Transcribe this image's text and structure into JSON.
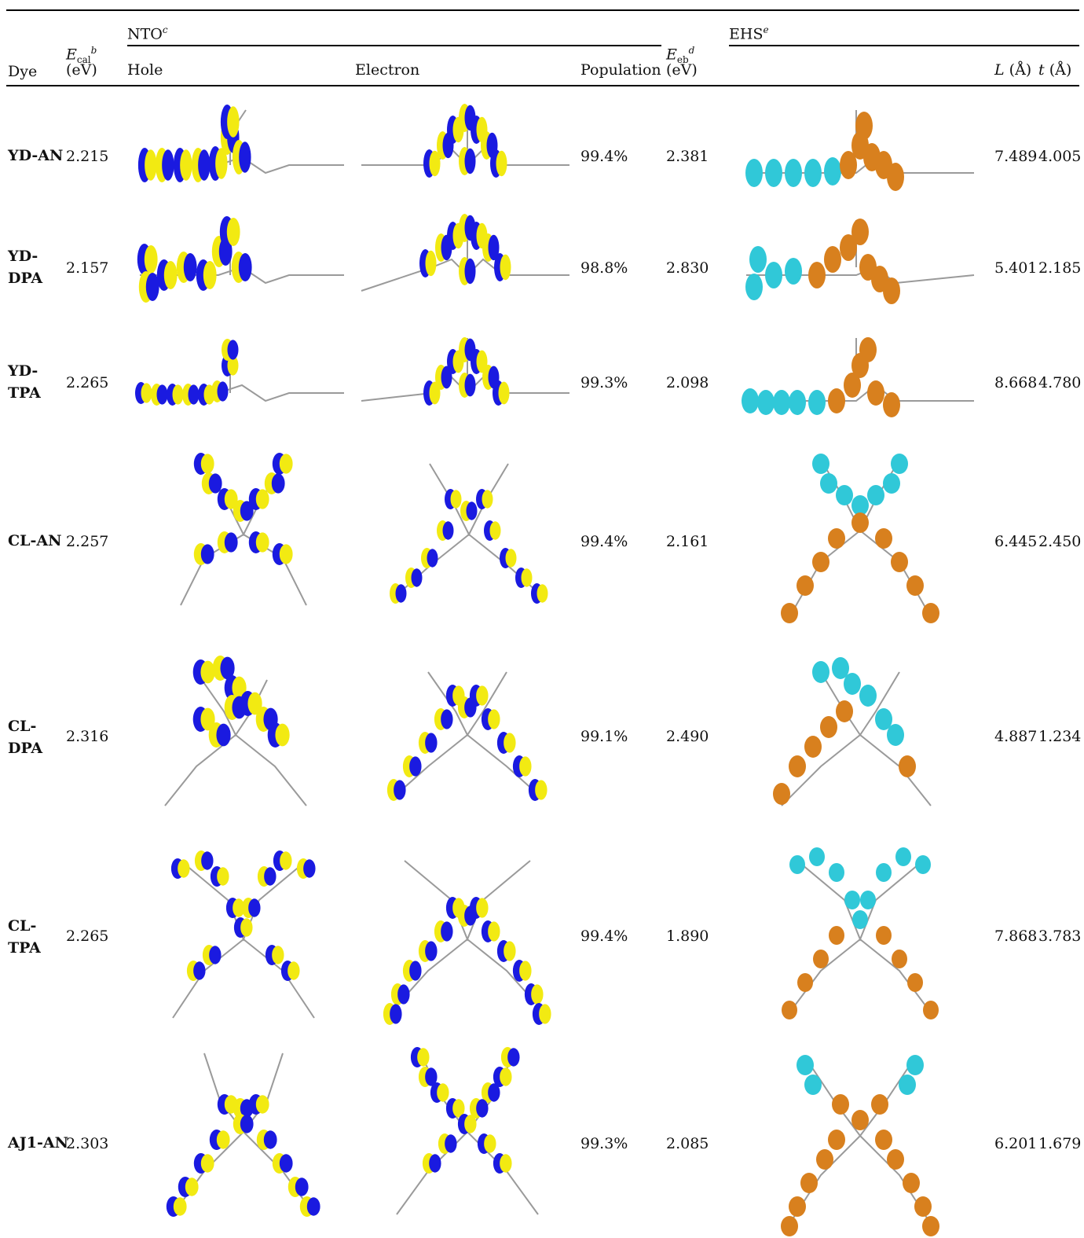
{
  "header": {
    "dye": "Dye",
    "ecal_symbol": "E",
    "ecal_sub": "cal",
    "ecal_sup": "b",
    "ecal_unit": "(eV)",
    "nto": "NTO",
    "nto_sup": "c",
    "hole": "Hole",
    "electron": "Electron",
    "population": "Population",
    "eeb_symbol": "E",
    "eeb_sub": "eb",
    "eeb_sup": "d",
    "eeb_unit": "(eV)",
    "ehs": "EHS",
    "ehs_sup": "e",
    "L_label": "L",
    "L_unit": "(Å)",
    "t_label": "t",
    "t_unit": "(Å)"
  },
  "rows": [
    {
      "dye_line1": "YD-AN",
      "dye_line2": "",
      "ecal": "2.215",
      "population": "99.4%",
      "eeb": "2.381",
      "L": "7.489",
      "t": "4.005"
    },
    {
      "dye_line1": "YD-",
      "dye_line2": "DPA",
      "ecal": "2.157",
      "population": "98.8%",
      "eeb": "2.830",
      "L": "5.401",
      "t": "2.185"
    },
    {
      "dye_line1": "YD-",
      "dye_line2": "TPA",
      "ecal": "2.265",
      "population": "99.3%",
      "eeb": "2.098",
      "L": "8.668",
      "t": "4.780"
    },
    {
      "dye_line1": "CL-AN",
      "dye_line2": "",
      "ecal": "2.257",
      "population": "99.4%",
      "eeb": "2.161",
      "L": "6.445",
      "t": "2.450"
    },
    {
      "dye_line1": "CL-",
      "dye_line2": "DPA",
      "ecal": "2.316",
      "population": "99.1%",
      "eeb": "2.490",
      "L": "4.887",
      "t": "1.234"
    },
    {
      "dye_line1": "CL-",
      "dye_line2": "TPA",
      "ecal": "2.265",
      "population": "99.4%",
      "eeb": "1.890",
      "L": "7.868",
      "t": "3.783"
    },
    {
      "dye_line1": "AJ1-AN",
      "dye_line2": "",
      "ecal": "2.303",
      "population": "99.3%",
      "eeb": "2.085",
      "L": "6.201",
      "t": "1.679"
    }
  ],
  "colors": {
    "nto_lobe_a": "#1a1ae0",
    "nto_lobe_b": "#f2ea12",
    "ehs_hole": "#30c8d8",
    "ehs_electron": "#d8801e",
    "bond": "#9a9a9a"
  }
}
